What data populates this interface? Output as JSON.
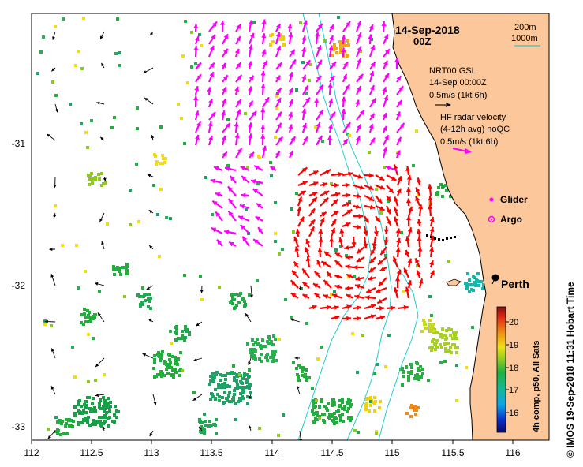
{
  "title": {
    "date": "14-Sep-2018",
    "hour": "00Z"
  },
  "axes": {
    "x_ticks": [
      "112",
      "112.5",
      "113",
      "113.5",
      "114",
      "114.5",
      "115",
      "115.5",
      "116"
    ],
    "y_ticks": [
      "-31",
      "-32",
      "-33"
    ],
    "lon_range": [
      112,
      116.3
    ],
    "lat_range": [
      -33.1,
      -30.0
    ]
  },
  "isobaths": {
    "label_200": "200m",
    "label_1000": "1000m",
    "color": "#22cccc"
  },
  "legend": {
    "nrt_title": "NRT00 GSL",
    "nrt_time": "14-Sep 00:00Z",
    "nrt_scale": "0.5m/s (1kt 6h)",
    "hf_title": "HF radar velocity",
    "hf_avg": "(4-12h avg) noQC",
    "hf_scale": "0.5m/s (1kt 6h)",
    "glider_label": "Glider",
    "argo_label": "Argo"
  },
  "place": {
    "city": "Perth"
  },
  "colorbar": {
    "label": "4h comp, p50, All Sats",
    "ticks": [
      "20",
      "19",
      "18",
      "17",
      "16"
    ],
    "range": [
      15.2,
      20.6
    ]
  },
  "credit": "© IMOS 19-Sep-2018 11:31 Hobart Time",
  "colors": {
    "land": "#fcc79a",
    "hf_arrow": "#ff00ff",
    "nrt_arrow": "#000000",
    "red_arrow": "#ff0000",
    "glider": "#ff00ff",
    "isobath": "#22cccc"
  }
}
